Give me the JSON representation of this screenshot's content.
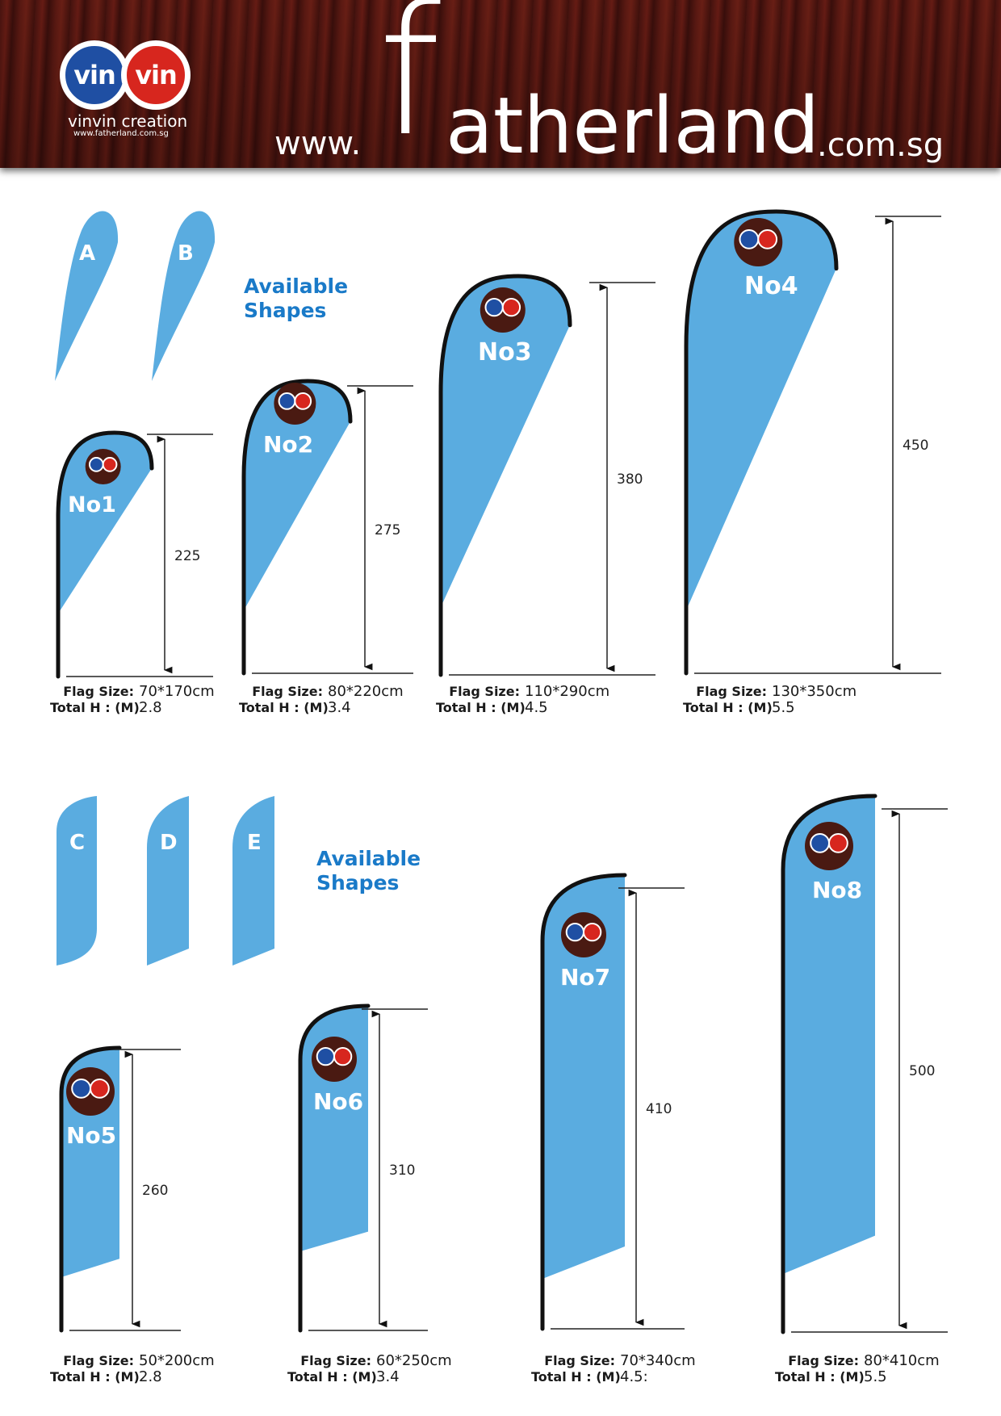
{
  "brand": {
    "logo_left": "vin",
    "logo_right": "vin",
    "logo_name": "vinvin creation",
    "logo_url": "www.fatherland.com.sg"
  },
  "header": {
    "www": "www.",
    "big_letter": "f",
    "word": "atherland",
    "domain": ".com.sg"
  },
  "colors": {
    "flag": "#5aace0",
    "accent_text": "#1a7ac8",
    "header_bg": "#5a1812"
  },
  "shape_groups": [
    {
      "title_line1": "Available",
      "title_line2": "Shapes",
      "shapes": [
        "A",
        "B"
      ]
    },
    {
      "title_line1": "Available",
      "title_line2": "Shapes",
      "shapes": [
        "C",
        "D",
        "E"
      ]
    }
  ],
  "labels": {
    "flag_size": "Flag Size:",
    "total_h": "Total H : (M)"
  },
  "flags": [
    {
      "name": "No1",
      "height": "225",
      "flag_size": "70*170cm",
      "total_h": "2.8"
    },
    {
      "name": "No2",
      "height": "275",
      "flag_size": "80*220cm",
      "total_h": "3.4"
    },
    {
      "name": "No3",
      "height": "380",
      "flag_size": "110*290cm",
      "total_h": "4.5"
    },
    {
      "name": "No4",
      "height": "450",
      "flag_size": "130*350cm",
      "total_h": "5.5"
    },
    {
      "name": "No5",
      "height": "260",
      "flag_size": "50*200cm",
      "total_h": "2.8"
    },
    {
      "name": "No6",
      "height": "310",
      "flag_size": "60*250cm",
      "total_h": "3.4"
    },
    {
      "name": "No7",
      "height": "410",
      "flag_size": "70*340cm",
      "total_h": "4.5:"
    },
    {
      "name": "No8",
      "height": "500",
      "flag_size": "80*410cm",
      "total_h": "5.5"
    }
  ]
}
